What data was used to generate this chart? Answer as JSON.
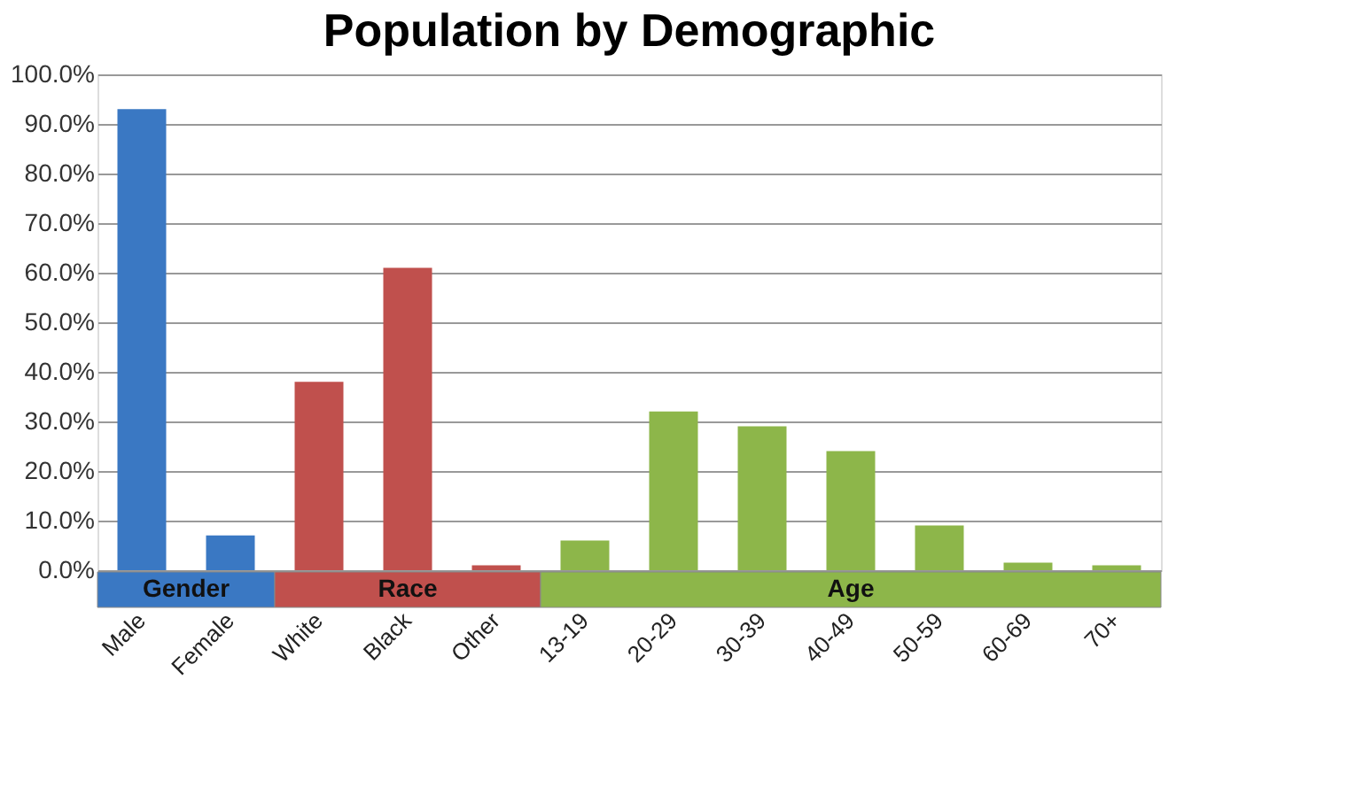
{
  "chart_data": {
    "type": "bar",
    "title": "Population by Demographic",
    "categories": [
      "Male",
      "Female",
      "White",
      "Black",
      "Other",
      "13-19",
      "20-29",
      "30-39",
      "40-49",
      "50-59",
      "60-69",
      "70+"
    ],
    "series": [
      {
        "name": "Gender",
        "color": "#3a78c3",
        "values": [
          93,
          7,
          null,
          null,
          null,
          null,
          null,
          null,
          null,
          null,
          null,
          null
        ]
      },
      {
        "name": "Race",
        "color": "#c0504d",
        "values": [
          null,
          null,
          38,
          61,
          1,
          null,
          null,
          null,
          null,
          null,
          null,
          null
        ]
      },
      {
        "name": "Age",
        "color": "#8db64a",
        "values": [
          null,
          null,
          null,
          null,
          null,
          6,
          32,
          29,
          24,
          9,
          1.5,
          1
        ]
      }
    ],
    "ylim": [
      0,
      100
    ],
    "yticks": [
      {
        "value": 0,
        "label": "0.0%"
      },
      {
        "value": 10,
        "label": "10.0%"
      },
      {
        "value": 20,
        "label": "20.0%"
      },
      {
        "value": 30,
        "label": "30.0%"
      },
      {
        "value": 40,
        "label": "40.0%"
      },
      {
        "value": 50,
        "label": "50.0%"
      },
      {
        "value": 60,
        "label": "60.0%"
      },
      {
        "value": 70,
        "label": "70.0%"
      },
      {
        "value": 80,
        "label": "80.0%"
      },
      {
        "value": 90,
        "label": "90.0%"
      },
      {
        "value": 100,
        "label": "100.0%"
      }
    ],
    "grid": "y",
    "legend": "bottom"
  }
}
